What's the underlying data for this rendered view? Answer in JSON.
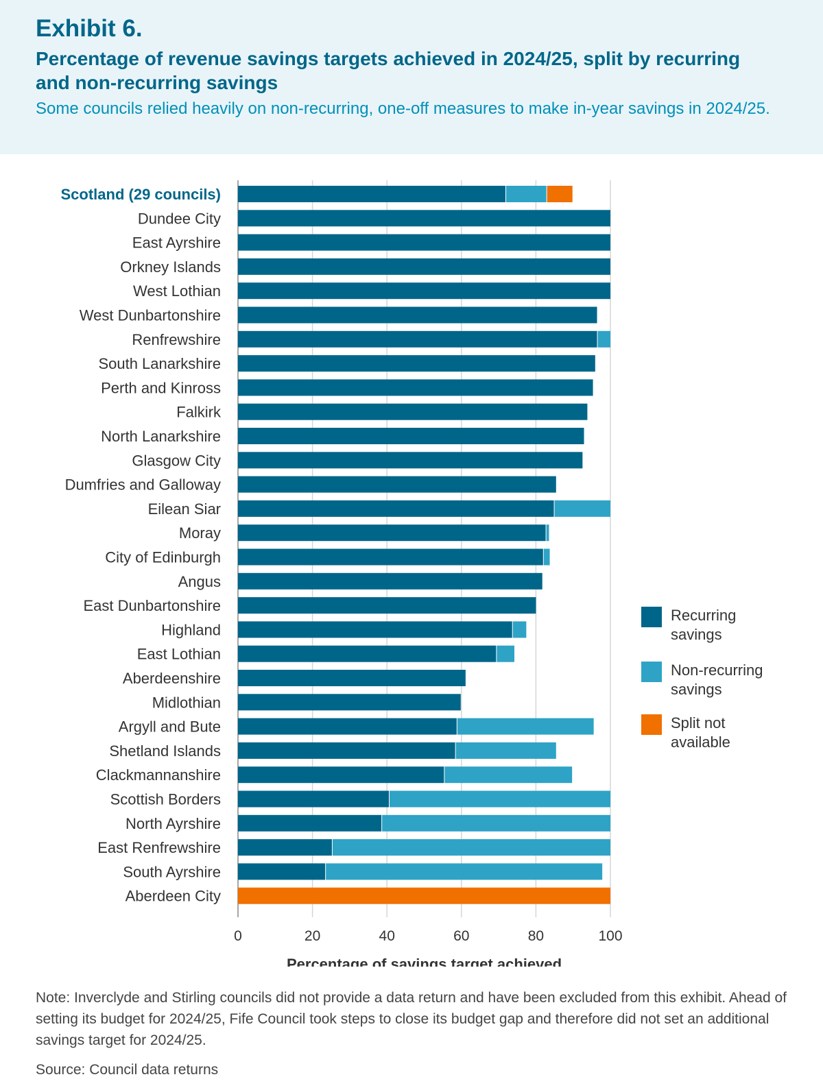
{
  "header": {
    "exhibit": "Exhibit 6.",
    "title": "Percentage of revenue savings targets achieved in 2024/25, split by recurring and non-recurring savings",
    "subtitle": "Some councils relied heavily on non-recurring, one-off measures to make in-year savings in 2024/25."
  },
  "colors": {
    "recurring": "#006689",
    "non_recurring": "#2ea3c6",
    "split_na": "#f07000",
    "highlight_label": "#006689"
  },
  "chart_data": {
    "type": "bar",
    "orientation": "horizontal",
    "stacked": true,
    "xlabel": "Percentage of savings target achieved",
    "xlim": [
      0,
      100
    ],
    "xticks": [
      0,
      20,
      40,
      60,
      80,
      100
    ],
    "grid": true,
    "legend": "right",
    "categories": [
      "Scotland (29 councils)",
      "Dundee City",
      "East Ayrshire",
      "Orkney Islands",
      "West Lothian",
      "West Dunbartonshire",
      "Renfrewshire",
      "South Lanarkshire",
      "Perth and Kinross",
      "Falkirk",
      "North Lanarkshire",
      "Glasgow City",
      "Dumfries and Galloway",
      "Eilean Siar",
      "Moray",
      "City of Edinburgh",
      "Angus",
      "East Dunbartonshire",
      "Highland",
      "East Lothian",
      "Aberdeenshire",
      "Midlothian",
      "Argyll and Bute",
      "Shetland Islands",
      "Clackmannanshire",
      "Scottish Borders",
      "North Ayrshire",
      "East Renfrewshire",
      "South Ayrshire",
      "Aberdeen City"
    ],
    "series": [
      {
        "name": "Recurring savings",
        "key": "recurring",
        "values": [
          72,
          100,
          100,
          100,
          100,
          96.6,
          96.6,
          96.1,
          95.5,
          94,
          93.1,
          92.7,
          85.6,
          85,
          82.8,
          82.1,
          81.9,
          80.2,
          73.8,
          69.5,
          61.3,
          60,
          58.9,
          58.5,
          55.5,
          40.7,
          38.7,
          25.4,
          23.6,
          0
        ]
      },
      {
        "name": "Non-recurring savings",
        "key": "non_recurring",
        "values": [
          11,
          0,
          0,
          0,
          0,
          0,
          3.4,
          0,
          0,
          0,
          0,
          0,
          0,
          15,
          0.9,
          1.8,
          0,
          0,
          3.8,
          4.9,
          0,
          0,
          36.8,
          27.1,
          34.4,
          59.3,
          61.3,
          74.6,
          74.4,
          0
        ]
      },
      {
        "name": "Split not available",
        "key": "split_na",
        "values": [
          7,
          0,
          0,
          0,
          0,
          0,
          0,
          0,
          0,
          0,
          0,
          0,
          0,
          0,
          0,
          0,
          0,
          0,
          0,
          0,
          0,
          0,
          0,
          0,
          0,
          0,
          0,
          0,
          0,
          100
        ]
      }
    ],
    "legend_labels": [
      [
        "Recurring",
        "savings"
      ],
      [
        "Non-recurring",
        "savings"
      ],
      [
        "Split not",
        "available"
      ]
    ]
  },
  "footer": {
    "note": "Note: Inverclyde and Stirling councils did not provide a data return and have been excluded from this exhibit. Ahead of setting its budget for 2024/25, Fife Council took steps to close its budget gap and therefore did not set an additional savings target for 2024/25.",
    "source": "Source: Council data returns"
  }
}
